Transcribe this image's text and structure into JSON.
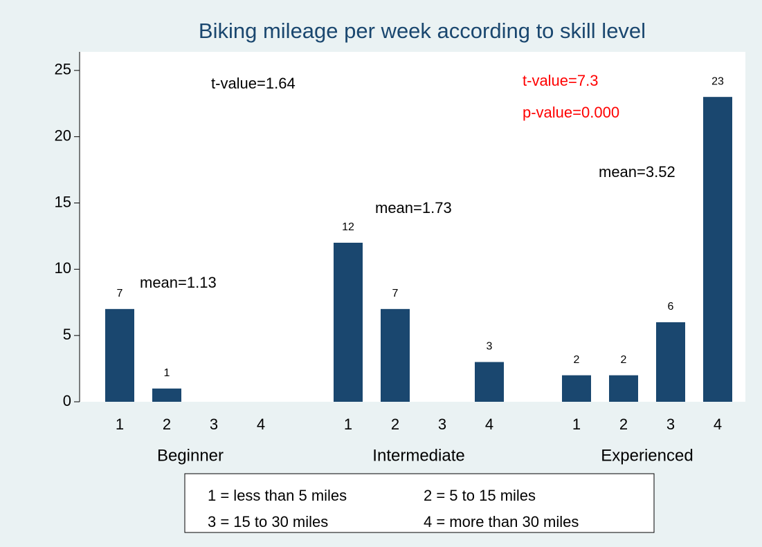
{
  "chart_data": {
    "type": "bar",
    "title": "Biking mileage per week according to skill level",
    "color": "#1a476f",
    "groups": [
      {
        "name": "Beginner",
        "categories": [
          "1",
          "2",
          "3",
          "4"
        ],
        "values": [
          7,
          1,
          0,
          0
        ]
      },
      {
        "name": "Intermediate",
        "categories": [
          "1",
          "2",
          "3",
          "4"
        ],
        "values": [
          12,
          7,
          0,
          3
        ]
      },
      {
        "name": "Experienced",
        "categories": [
          "1",
          "2",
          "3",
          "4"
        ],
        "values": [
          2,
          2,
          6,
          23
        ]
      }
    ],
    "ylim": [
      0,
      26.4
    ],
    "yticks": [
      0,
      5,
      10,
      15,
      20,
      25
    ],
    "annotations": [
      {
        "text": "t-value=1.64",
        "color": "#000000"
      },
      {
        "text": "mean=1.13",
        "color": "#000000"
      },
      {
        "text": "mean=1.73",
        "color": "#000000"
      },
      {
        "text": "t-value=7.3",
        "color": "#ff0000"
      },
      {
        "text": "p-value=0.000",
        "color": "#ff0000"
      },
      {
        "text": "mean=3.52",
        "color": "#000000"
      }
    ],
    "legend": [
      "1 = less than 5 miles",
      "2 = 5 to 15 miles",
      "3 = 15 to 30 miles",
      "4 = more than 30 miles"
    ]
  }
}
